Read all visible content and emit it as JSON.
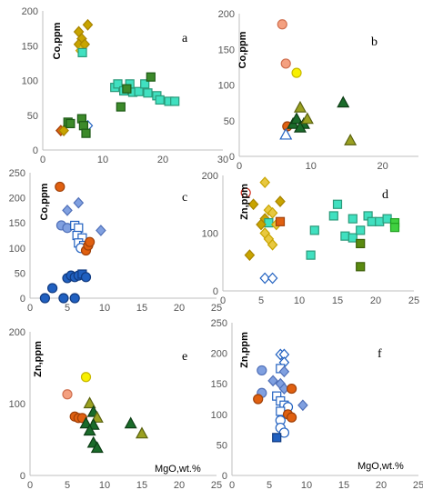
{
  "colors": {
    "yellow_diamond": "#c8a400",
    "gold_diamond_light": "#e8c840",
    "aqua_square": "#40e0c0",
    "aqua_square_dark": "#2a9a6a",
    "green_square": "#3c8a2a",
    "olive": "#9aa020",
    "darkgreen": "#1a6b2a",
    "orange": "#e06010",
    "salmon": "#f4a080",
    "yellow_circle": "#f8f000",
    "blue": "#2060c0",
    "lightblue": "#80a0e0",
    "white": "#ffffff"
  },
  "chart_data": [
    {
      "type": "scatter",
      "panel_label": "a",
      "ylabel": "Co,ppm",
      "xlabel": "",
      "xlim": [
        0,
        30
      ],
      "ylim": [
        0,
        200
      ],
      "xticks": [
        0,
        10,
        20,
        30
      ],
      "yticks": [
        0,
        50,
        100,
        150,
        200
      ],
      "points": [
        {
          "x": 6.0,
          "y": 170,
          "m": "diamond",
          "c": "yellow_diamond"
        },
        {
          "x": 7.5,
          "y": 180,
          "m": "diamond",
          "c": "yellow_diamond"
        },
        {
          "x": 6.5,
          "y": 160,
          "m": "diamond",
          "c": "yellow_diamond"
        },
        {
          "x": 6.0,
          "y": 152,
          "m": "diamond",
          "c": "yellow_diamond"
        },
        {
          "x": 7.0,
          "y": 152,
          "m": "diamond",
          "c": "yellow_diamond"
        },
        {
          "x": 6.3,
          "y": 143,
          "m": "diamond",
          "c": "gold_diamond_light"
        },
        {
          "x": 6.6,
          "y": 140,
          "m": "square",
          "c": "aqua_square"
        },
        {
          "x": 3.0,
          "y": 28,
          "m": "diamond",
          "c": "orange"
        },
        {
          "x": 3.5,
          "y": 28,
          "m": "diamond",
          "c": "yellow_diamond"
        },
        {
          "x": 7.5,
          "y": 35,
          "m": "diamond",
          "c": "white"
        },
        {
          "x": 4.2,
          "y": 40,
          "m": "square",
          "c": "green_square"
        },
        {
          "x": 4.6,
          "y": 38,
          "m": "square",
          "c": "green_square"
        },
        {
          "x": 6.5,
          "y": 45,
          "m": "square",
          "c": "green_square"
        },
        {
          "x": 6.8,
          "y": 35,
          "m": "square",
          "c": "green_square"
        },
        {
          "x": 7.2,
          "y": 24,
          "m": "square",
          "c": "green_square"
        },
        {
          "x": 12.0,
          "y": 90,
          "m": "square",
          "c": "aqua_square"
        },
        {
          "x": 12.5,
          "y": 95,
          "m": "square",
          "c": "aqua_square"
        },
        {
          "x": 13.5,
          "y": 85,
          "m": "square",
          "c": "aqua_square"
        },
        {
          "x": 14.5,
          "y": 95,
          "m": "square",
          "c": "aqua_square"
        },
        {
          "x": 15.0,
          "y": 83,
          "m": "square",
          "c": "aqua_square"
        },
        {
          "x": 16.0,
          "y": 84,
          "m": "square",
          "c": "aqua_square"
        },
        {
          "x": 17.0,
          "y": 95,
          "m": "square",
          "c": "aqua_square"
        },
        {
          "x": 17.5,
          "y": 82,
          "m": "square",
          "c": "aqua_square"
        },
        {
          "x": 19.0,
          "y": 78,
          "m": "square",
          "c": "aqua_square"
        },
        {
          "x": 19.5,
          "y": 72,
          "m": "square",
          "c": "aqua_square"
        },
        {
          "x": 21.0,
          "y": 70,
          "m": "square",
          "c": "aqua_square"
        },
        {
          "x": 22.0,
          "y": 70,
          "m": "square",
          "c": "aqua_square"
        },
        {
          "x": 13.0,
          "y": 62,
          "m": "square",
          "c": "green_square"
        },
        {
          "x": 14.0,
          "y": 88,
          "m": "square",
          "c": "green_square"
        },
        {
          "x": 18.0,
          "y": 105,
          "m": "square",
          "c": "green_square"
        }
      ]
    },
    {
      "type": "scatter",
      "panel_label": "b",
      "ylabel": "Co,ppm",
      "xlabel": "",
      "xlim": [
        0,
        25
      ],
      "ylim": [
        0,
        200
      ],
      "xticks": [
        0,
        10,
        20
      ],
      "yticks": [
        0,
        50,
        100,
        150,
        200
      ],
      "points": [
        {
          "x": 6.0,
          "y": 185,
          "m": "circle",
          "c": "salmon"
        },
        {
          "x": 6.5,
          "y": 130,
          "m": "circle",
          "c": "salmon"
        },
        {
          "x": 8.0,
          "y": 117,
          "m": "circle",
          "c": "yellow_circle"
        },
        {
          "x": 6.7,
          "y": 42,
          "m": "circle",
          "c": "orange"
        },
        {
          "x": 6.5,
          "y": 30,
          "m": "triangle",
          "c": "white"
        },
        {
          "x": 7.5,
          "y": 45,
          "m": "triangle",
          "c": "darkgreen"
        },
        {
          "x": 8.0,
          "y": 52,
          "m": "triangle",
          "c": "darkgreen"
        },
        {
          "x": 8.5,
          "y": 68,
          "m": "triangle",
          "c": "olive"
        },
        {
          "x": 9.0,
          "y": 45,
          "m": "triangle",
          "c": "darkgreen"
        },
        {
          "x": 8.5,
          "y": 40,
          "m": "triangle",
          "c": "darkgreen"
        },
        {
          "x": 9.5,
          "y": 52,
          "m": "triangle",
          "c": "olive"
        },
        {
          "x": 14.5,
          "y": 75,
          "m": "triangle",
          "c": "darkgreen"
        },
        {
          "x": 15.5,
          "y": 22,
          "m": "triangle",
          "c": "olive"
        }
      ]
    },
    {
      "type": "scatter",
      "panel_label": "c",
      "ylabel": "Co,ppm",
      "xlabel": "",
      "xlim": [
        0,
        25
      ],
      "ylim": [
        0,
        250
      ],
      "xticks": [
        0,
        5,
        10,
        15,
        20,
        25
      ],
      "yticks": [
        0,
        50,
        100,
        150,
        200,
        250
      ],
      "points": [
        {
          "x": 4.0,
          "y": 222,
          "m": "circle",
          "c": "orange"
        },
        {
          "x": 5.0,
          "y": 175,
          "m": "diamond",
          "c": "lightblue"
        },
        {
          "x": 6.5,
          "y": 190,
          "m": "diamond",
          "c": "lightblue"
        },
        {
          "x": 4.2,
          "y": 145,
          "m": "circle",
          "c": "lightblue"
        },
        {
          "x": 5.0,
          "y": 140,
          "m": "circle",
          "c": "lightblue"
        },
        {
          "x": 6.0,
          "y": 145,
          "m": "square",
          "c": "white"
        },
        {
          "x": 6.5,
          "y": 140,
          "m": "square",
          "c": "white"
        },
        {
          "x": 6.3,
          "y": 125,
          "m": "square",
          "c": "white"
        },
        {
          "x": 7.0,
          "y": 120,
          "m": "square",
          "c": "white"
        },
        {
          "x": 6.5,
          "y": 110,
          "m": "square",
          "c": "white"
        },
        {
          "x": 7.2,
          "y": 105,
          "m": "square",
          "c": "white"
        },
        {
          "x": 6.8,
          "y": 100,
          "m": "circle",
          "c": "white"
        },
        {
          "x": 7.5,
          "y": 95,
          "m": "circle",
          "c": "orange"
        },
        {
          "x": 7.8,
          "y": 105,
          "m": "circle",
          "c": "orange"
        },
        {
          "x": 8.0,
          "y": 112,
          "m": "circle",
          "c": "orange"
        },
        {
          "x": 9.5,
          "y": 135,
          "m": "diamond",
          "c": "lightblue"
        },
        {
          "x": 5.0,
          "y": 40,
          "m": "circle",
          "c": "blue"
        },
        {
          "x": 5.5,
          "y": 45,
          "m": "circle",
          "c": "blue"
        },
        {
          "x": 6.0,
          "y": 42,
          "m": "circle",
          "c": "blue"
        },
        {
          "x": 6.5,
          "y": 45,
          "m": "circle",
          "c": "blue"
        },
        {
          "x": 7.0,
          "y": 48,
          "m": "square",
          "c": "blue"
        },
        {
          "x": 7.5,
          "y": 42,
          "m": "circle",
          "c": "blue"
        },
        {
          "x": 3.0,
          "y": 20,
          "m": "circle",
          "c": "blue"
        },
        {
          "x": 2.0,
          "y": 0,
          "m": "circle",
          "c": "blue"
        },
        {
          "x": 4.5,
          "y": 0,
          "m": "circle",
          "c": "blue"
        },
        {
          "x": 6.0,
          "y": 0,
          "m": "circle",
          "c": "blue"
        }
      ]
    },
    {
      "type": "scatter",
      "panel_label": "d",
      "ylabel": "Zn,ppm",
      "xlabel": "",
      "xlim": [
        0,
        25
      ],
      "ylim": [
        0,
        200
      ],
      "xticks": [
        0,
        5,
        10,
        15,
        20,
        25
      ],
      "yticks": [
        0,
        100,
        200
      ],
      "points": [
        {
          "x": 3.0,
          "y": 170,
          "m": "circle",
          "c": "white_red"
        },
        {
          "x": 5.5,
          "y": 188,
          "m": "diamond",
          "c": "gold_diamond_light"
        },
        {
          "x": 4.0,
          "y": 150,
          "m": "diamond",
          "c": "yellow_diamond"
        },
        {
          "x": 6.0,
          "y": 140,
          "m": "diamond",
          "c": "gold_diamond_light"
        },
        {
          "x": 6.5,
          "y": 135,
          "m": "diamond",
          "c": "gold_diamond_light"
        },
        {
          "x": 7.5,
          "y": 155,
          "m": "diamond",
          "c": "yellow_diamond"
        },
        {
          "x": 5.5,
          "y": 125,
          "m": "diamond",
          "c": "yellow_diamond"
        },
        {
          "x": 6.0,
          "y": 118,
          "m": "square",
          "c": "aqua_square"
        },
        {
          "x": 5.0,
          "y": 115,
          "m": "diamond",
          "c": "yellow_diamond"
        },
        {
          "x": 7.0,
          "y": 115,
          "m": "diamond",
          "c": "gold_diamond_light"
        },
        {
          "x": 5.5,
          "y": 100,
          "m": "diamond",
          "c": "gold_diamond_light"
        },
        {
          "x": 6.0,
          "y": 90,
          "m": "diamond",
          "c": "gold_diamond_light"
        },
        {
          "x": 6.5,
          "y": 80,
          "m": "diamond",
          "c": "gold_diamond_light"
        },
        {
          "x": 3.5,
          "y": 62,
          "m": "diamond",
          "c": "yellow_diamond"
        },
        {
          "x": 7.5,
          "y": 120,
          "m": "square",
          "c": "orange"
        },
        {
          "x": 5.5,
          "y": 22,
          "m": "diamond",
          "c": "white"
        },
        {
          "x": 6.5,
          "y": 22,
          "m": "diamond",
          "c": "white"
        },
        {
          "x": 11.5,
          "y": 62,
          "m": "square",
          "c": "aqua_square"
        },
        {
          "x": 12.0,
          "y": 105,
          "m": "square",
          "c": "aqua_square"
        },
        {
          "x": 14.5,
          "y": 130,
          "m": "square",
          "c": "aqua_square"
        },
        {
          "x": 15.0,
          "y": 150,
          "m": "square",
          "c": "aqua_square"
        },
        {
          "x": 16.0,
          "y": 95,
          "m": "square",
          "c": "aqua_square"
        },
        {
          "x": 17.0,
          "y": 92,
          "m": "square",
          "c": "aqua_square"
        },
        {
          "x": 17.0,
          "y": 125,
          "m": "square",
          "c": "aqua_square"
        },
        {
          "x": 18.0,
          "y": 105,
          "m": "square",
          "c": "aqua_square"
        },
        {
          "x": 19.0,
          "y": 130,
          "m": "square",
          "c": "aqua_square"
        },
        {
          "x": 19.5,
          "y": 120,
          "m": "square",
          "c": "aqua_square"
        },
        {
          "x": 20.5,
          "y": 120,
          "m": "square",
          "c": "aqua_square"
        },
        {
          "x": 21.5,
          "y": 125,
          "m": "square",
          "c": "aqua_square"
        },
        {
          "x": 22.5,
          "y": 118,
          "m": "square",
          "c": "green_light"
        },
        {
          "x": 22.5,
          "y": 110,
          "m": "square",
          "c": "green_light"
        },
        {
          "x": 18.0,
          "y": 42,
          "m": "square",
          "c": "olive_square"
        },
        {
          "x": 18.0,
          "y": 82,
          "m": "square",
          "c": "olive_square"
        }
      ]
    },
    {
      "type": "scatter",
      "panel_label": "e",
      "ylabel": "Zn,ppm",
      "xlabel": "MgO,wt.%",
      "xlim": [
        0,
        25
      ],
      "ylim": [
        0,
        200
      ],
      "xticks": [
        0,
        5,
        10,
        15,
        20,
        25
      ],
      "yticks": [
        0,
        100,
        200
      ],
      "points": [
        {
          "x": 7.5,
          "y": 137,
          "m": "circle",
          "c": "yellow_circle"
        },
        {
          "x": 5.0,
          "y": 113,
          "m": "circle",
          "c": "salmon"
        },
        {
          "x": 6.0,
          "y": 82,
          "m": "circle",
          "c": "orange"
        },
        {
          "x": 6.5,
          "y": 80,
          "m": "circle",
          "c": "orange"
        },
        {
          "x": 7.0,
          "y": 80,
          "m": "circle",
          "c": "orange"
        },
        {
          "x": 8.0,
          "y": 100,
          "m": "triangle",
          "c": "olive"
        },
        {
          "x": 8.5,
          "y": 88,
          "m": "triangle",
          "c": "darkgreen"
        },
        {
          "x": 9.0,
          "y": 80,
          "m": "triangle",
          "c": "olive"
        },
        {
          "x": 7.5,
          "y": 72,
          "m": "triangle",
          "c": "darkgreen"
        },
        {
          "x": 8.5,
          "y": 70,
          "m": "triangle",
          "c": "darkgreen"
        },
        {
          "x": 8.0,
          "y": 62,
          "m": "triangle",
          "c": "darkgreen"
        },
        {
          "x": 8.5,
          "y": 45,
          "m": "triangle",
          "c": "darkgreen"
        },
        {
          "x": 9.0,
          "y": 38,
          "m": "triangle",
          "c": "darkgreen"
        },
        {
          "x": 13.5,
          "y": 72,
          "m": "triangle",
          "c": "darkgreen"
        },
        {
          "x": 15.0,
          "y": 58,
          "m": "triangle",
          "c": "olive"
        }
      ]
    },
    {
      "type": "scatter",
      "panel_label": "f",
      "ylabel": "Zn,ppm",
      "xlabel": "MgO,wt.%",
      "xlim": [
        0,
        25
      ],
      "ylim": [
        0,
        250
      ],
      "xticks": [
        0,
        5,
        10,
        15,
        20,
        25
      ],
      "yticks": [
        0,
        50,
        100,
        150,
        200,
        250
      ],
      "points": [
        {
          "x": 6.5,
          "y": 198,
          "m": "diamond",
          "c": "white"
        },
        {
          "x": 7.0,
          "y": 198,
          "m": "diamond",
          "c": "white"
        },
        {
          "x": 7.0,
          "y": 185,
          "m": "diamond",
          "c": "white"
        },
        {
          "x": 6.5,
          "y": 175,
          "m": "square",
          "c": "white"
        },
        {
          "x": 7.0,
          "y": 170,
          "m": "diamond",
          "c": "lightblue"
        },
        {
          "x": 4.0,
          "y": 172,
          "m": "circle",
          "c": "lightblue"
        },
        {
          "x": 5.5,
          "y": 155,
          "m": "diamond",
          "c": "lightblue"
        },
        {
          "x": 6.5,
          "y": 150,
          "m": "diamond",
          "c": "lightblue"
        },
        {
          "x": 7.0,
          "y": 142,
          "m": "diamond",
          "c": "lightblue"
        },
        {
          "x": 4.0,
          "y": 135,
          "m": "circle",
          "c": "lightblue"
        },
        {
          "x": 3.5,
          "y": 125,
          "m": "circle",
          "c": "orange"
        },
        {
          "x": 6.0,
          "y": 130,
          "m": "square",
          "c": "white"
        },
        {
          "x": 6.5,
          "y": 122,
          "m": "square",
          "c": "white"
        },
        {
          "x": 7.0,
          "y": 115,
          "m": "square",
          "c": "white"
        },
        {
          "x": 7.5,
          "y": 112,
          "m": "circle",
          "c": "white"
        },
        {
          "x": 9.5,
          "y": 115,
          "m": "diamond",
          "c": "lightblue"
        },
        {
          "x": 8.0,
          "y": 142,
          "m": "circle",
          "c": "orange"
        },
        {
          "x": 6.5,
          "y": 105,
          "m": "square",
          "c": "white"
        },
        {
          "x": 7.5,
          "y": 100,
          "m": "circle",
          "c": "orange"
        },
        {
          "x": 8.0,
          "y": 95,
          "m": "circle",
          "c": "orange"
        },
        {
          "x": 6.5,
          "y": 90,
          "m": "circle",
          "c": "white"
        },
        {
          "x": 6.5,
          "y": 78,
          "m": "circle",
          "c": "white"
        },
        {
          "x": 7.0,
          "y": 70,
          "m": "circle",
          "c": "white"
        },
        {
          "x": 6.0,
          "y": 62,
          "m": "square",
          "c": "blue"
        }
      ]
    }
  ]
}
